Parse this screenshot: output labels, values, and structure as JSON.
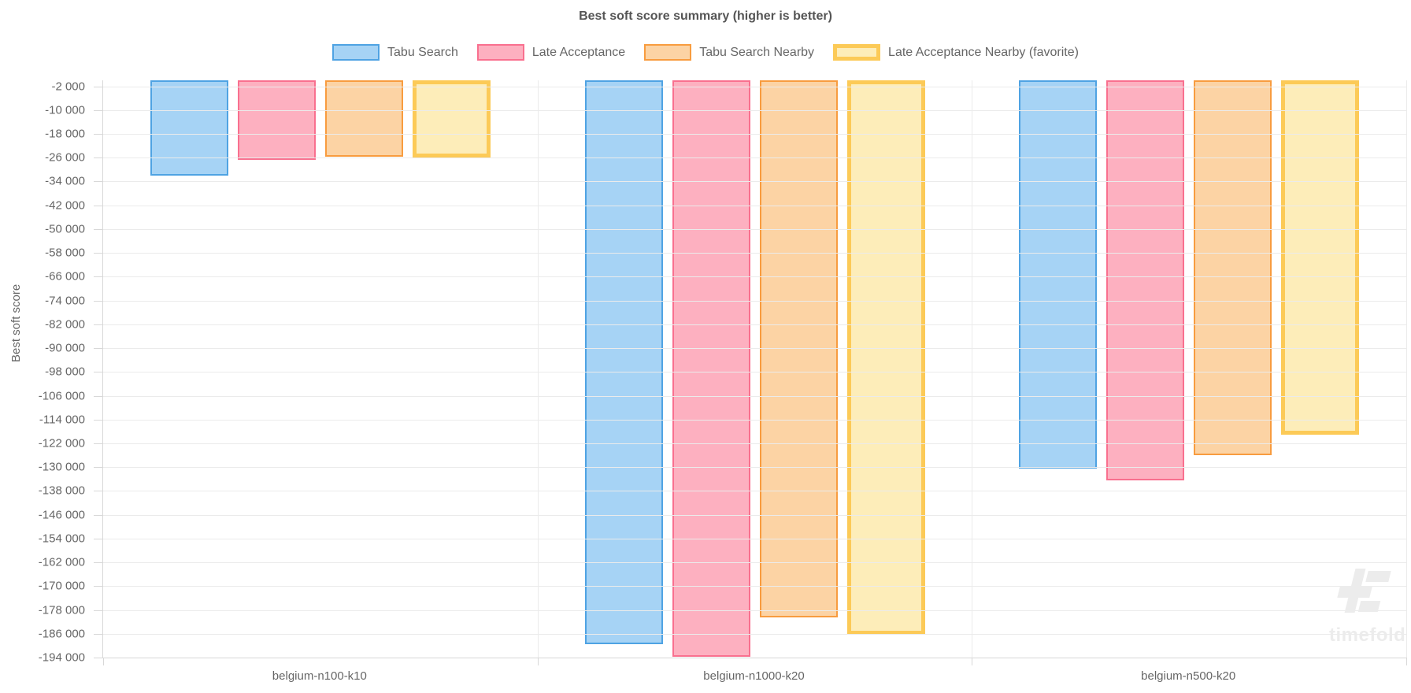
{
  "title": "Best soft score summary (higher is better)",
  "watermark_text": "timefold",
  "chart_data": {
    "type": "bar",
    "title": "Best soft score summary (higher is better)",
    "xlabel": "",
    "ylabel": "Best soft score",
    "legend_position": "top",
    "grid": true,
    "orientation": "vertical-negative",
    "ylim": [
      -194000,
      0
    ],
    "ytick_step": 8000,
    "yticks": [
      -2000,
      -10000,
      -18000,
      -26000,
      -34000,
      -42000,
      -50000,
      -58000,
      -66000,
      -74000,
      -82000,
      -90000,
      -98000,
      -106000,
      -114000,
      -122000,
      -130000,
      -138000,
      -146000,
      -154000,
      -162000,
      -170000,
      -178000,
      -186000,
      -194000
    ],
    "categories": [
      "belgium-n100-k10",
      "belgium-n1000-k20",
      "belgium-n500-k20"
    ],
    "series": [
      {
        "name": "Tabu Search",
        "values": [
          -32000,
          -189400,
          -130500
        ],
        "fill": "#A6D3F5",
        "border": "#4FA3E3",
        "border_width": 2
      },
      {
        "name": "Late Acceptance",
        "values": [
          -26700,
          -193800,
          -134500
        ],
        "fill": "#FDB0C0",
        "border": "#F9708F",
        "border_width": 2
      },
      {
        "name": "Tabu Search Nearby",
        "values": [
          -25600,
          -180500,
          -126000
        ],
        "fill": "#FCD3A4",
        "border": "#F89C3F",
        "border_width": 2
      },
      {
        "name": "Late Acceptance Nearby (favorite)",
        "values": [
          -26000,
          -186200,
          -119000
        ],
        "fill": "#FDEDB9",
        "border": "#FCCA57",
        "border_width": 5
      }
    ],
    "colors": {
      "text": "#666666",
      "title": "#555555",
      "gridline": "#EBEBEB",
      "axis_line": "#D8D8D8",
      "watermark": "#ECECEC"
    }
  }
}
